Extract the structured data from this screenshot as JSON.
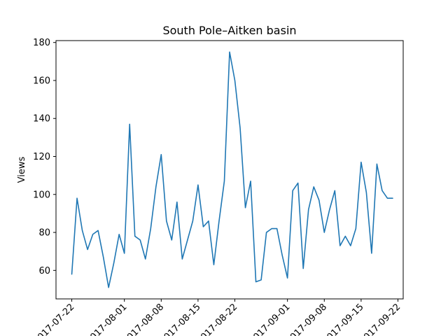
{
  "chart_data": {
    "type": "line",
    "title": "South Pole–Aitken basin",
    "xlabel": "",
    "ylabel": "Views",
    "x_ticks": [
      "2017-07-22",
      "2017-08-01",
      "2017-08-08",
      "2017-08-15",
      "2017-08-22",
      "2017-09-01",
      "2017-09-08",
      "2017-09-15",
      "2017-09-22"
    ],
    "y_ticks": [
      60,
      80,
      100,
      120,
      140,
      160,
      180
    ],
    "xlim": [
      "2017-07-19",
      "2017-09-23"
    ],
    "ylim": [
      45,
      181
    ],
    "grid": false,
    "line_color": "#1f77b4",
    "series": [
      {
        "x": [
          "2017-07-22",
          "2017-07-23",
          "2017-07-24",
          "2017-07-25",
          "2017-07-26",
          "2017-07-27",
          "2017-07-28",
          "2017-07-29",
          "2017-07-30",
          "2017-07-31",
          "2017-08-01",
          "2017-08-02",
          "2017-08-03",
          "2017-08-04",
          "2017-08-05",
          "2017-08-06",
          "2017-08-07",
          "2017-08-08",
          "2017-08-09",
          "2017-08-10",
          "2017-08-11",
          "2017-08-12",
          "2017-08-13",
          "2017-08-14",
          "2017-08-15",
          "2017-08-16",
          "2017-08-17",
          "2017-08-18",
          "2017-08-19",
          "2017-08-20",
          "2017-08-21",
          "2017-08-22",
          "2017-08-23",
          "2017-08-24",
          "2017-08-25",
          "2017-08-26",
          "2017-08-27",
          "2017-08-28",
          "2017-08-29",
          "2017-08-30",
          "2017-08-31",
          "2017-09-01",
          "2017-09-02",
          "2017-09-03",
          "2017-09-04",
          "2017-09-05",
          "2017-09-06",
          "2017-09-07",
          "2017-09-08",
          "2017-09-09",
          "2017-09-10",
          "2017-09-11",
          "2017-09-12",
          "2017-09-13",
          "2017-09-14",
          "2017-09-15",
          "2017-09-16",
          "2017-09-17",
          "2017-09-18",
          "2017-09-19",
          "2017-09-20",
          "2017-09-21"
        ],
        "values": [
          58,
          98,
          81,
          71,
          79,
          81,
          67,
          51,
          64,
          79,
          69,
          137,
          78,
          76,
          66,
          82,
          104,
          121,
          86,
          76,
          96,
          66,
          76,
          86,
          105,
          83,
          86,
          63,
          86,
          107,
          175,
          160,
          135,
          93,
          107,
          54,
          55,
          80,
          82,
          82,
          68,
          56,
          102,
          106,
          61,
          92,
          104,
          97,
          80,
          92,
          102,
          73,
          78,
          73,
          82,
          117,
          101,
          69,
          116,
          102,
          98,
          98
        ]
      }
    ]
  }
}
